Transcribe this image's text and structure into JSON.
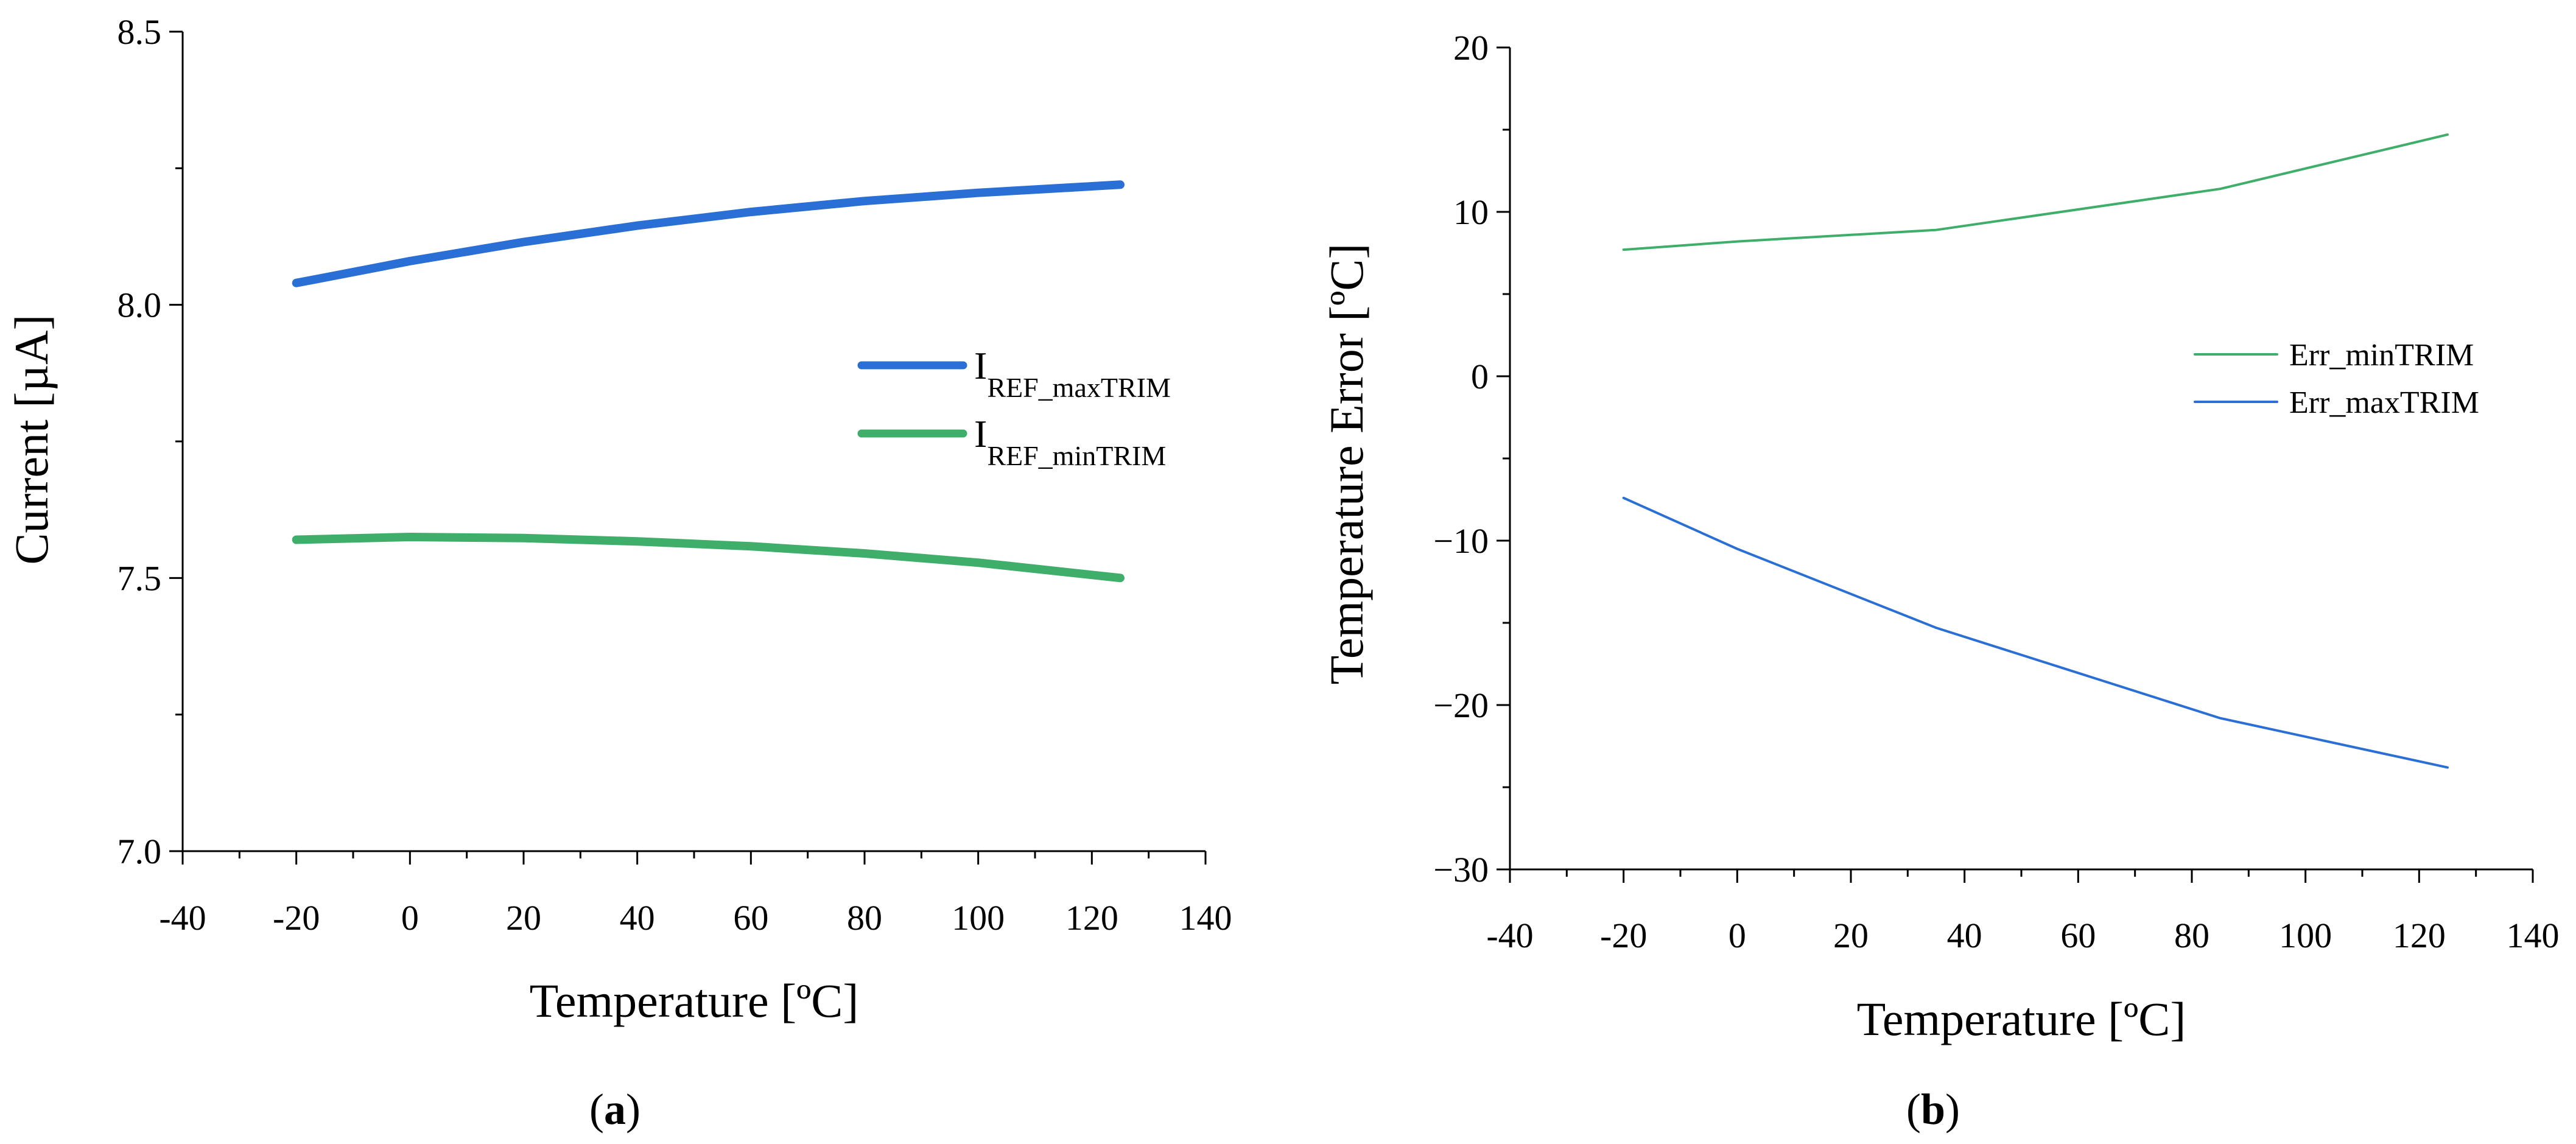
{
  "chart_data": [
    {
      "type": "line",
      "panel_label": "a",
      "xlabel": "Temperature [ºC]",
      "ylabel": "Current [µA]",
      "xlim": [
        -40,
        140
      ],
      "ylim": [
        7.0,
        8.5
      ],
      "x_ticks": [
        "-40",
        "-20",
        "0",
        "20",
        "40",
        "60",
        "80",
        "100",
        "120",
        "140"
      ],
      "y_ticks": [
        "7.0",
        "7.5",
        "8.0",
        "8.5"
      ],
      "grid": false,
      "legend_position": "right",
      "series": [
        {
          "name": "I_REF_maxTRIM",
          "legend_main": "I",
          "legend_sub": "REF_maxTRIM",
          "color": "#2a6fd6",
          "x": [
            -20,
            0,
            20,
            40,
            60,
            80,
            100,
            125
          ],
          "y": [
            8.04,
            8.08,
            8.115,
            8.145,
            8.17,
            8.19,
            8.205,
            8.22
          ]
        },
        {
          "name": "I_REF_minTRIM",
          "legend_main": "I",
          "legend_sub": "REF_minTRIM",
          "color": "#3fae6a",
          "x": [
            -20,
            0,
            20,
            40,
            60,
            80,
            100,
            125
          ],
          "y": [
            7.57,
            7.575,
            7.573,
            7.567,
            7.558,
            7.545,
            7.528,
            7.5
          ]
        }
      ]
    },
    {
      "type": "line",
      "panel_label": "b",
      "xlabel": "Temperature [ºC]",
      "ylabel": "Temperature Error [ºC]",
      "xlim": [
        -40,
        140
      ],
      "ylim": [
        -30,
        20
      ],
      "x_ticks": [
        "-40",
        "-20",
        "0",
        "20",
        "40",
        "60",
        "80",
        "100",
        "120",
        "140"
      ],
      "y_ticks": [
        "−30",
        "−20",
        "−10",
        "0",
        "10",
        "20"
      ],
      "grid": false,
      "legend_position": "right",
      "series": [
        {
          "name": "Err_minTRIM",
          "color": "#3fae6a",
          "x": [
            -20,
            0,
            35,
            85,
            125
          ],
          "y": [
            7.7,
            8.2,
            8.9,
            11.4,
            14.7
          ]
        },
        {
          "name": "Err_maxTRIM",
          "color": "#2a6fd6",
          "x": [
            -20,
            0,
            35,
            85,
            125
          ],
          "y": [
            -7.4,
            -10.5,
            -15.3,
            -20.8,
            -23.8
          ]
        }
      ]
    }
  ]
}
